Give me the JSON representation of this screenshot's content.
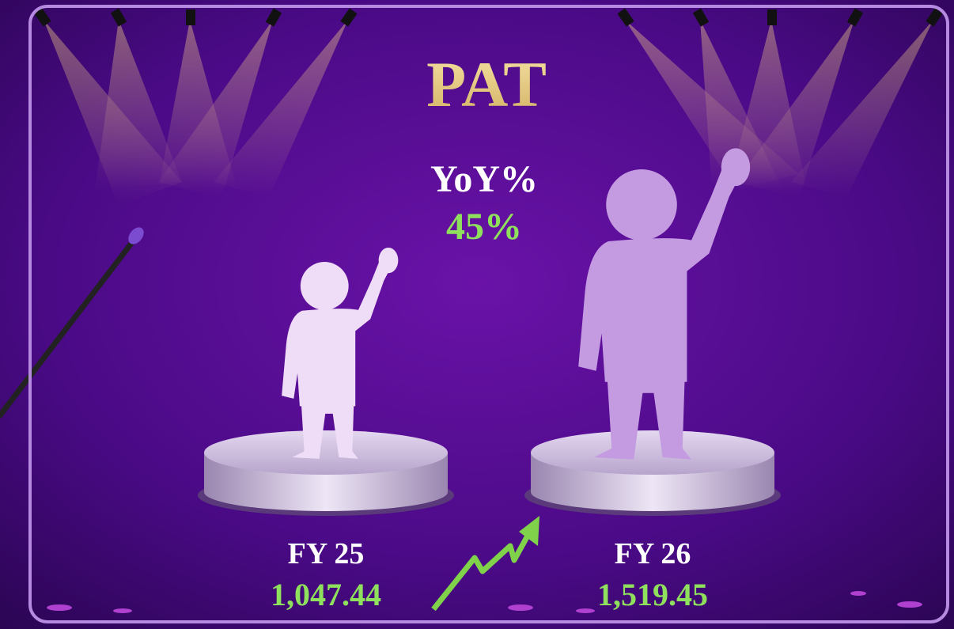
{
  "title": "PAT",
  "growth": {
    "label": "YoY%",
    "value": "45%"
  },
  "periods": [
    {
      "label": "FY 25",
      "value": "1,047.44"
    },
    {
      "label": "FY 26",
      "value": "1,519.45"
    }
  ]
}
